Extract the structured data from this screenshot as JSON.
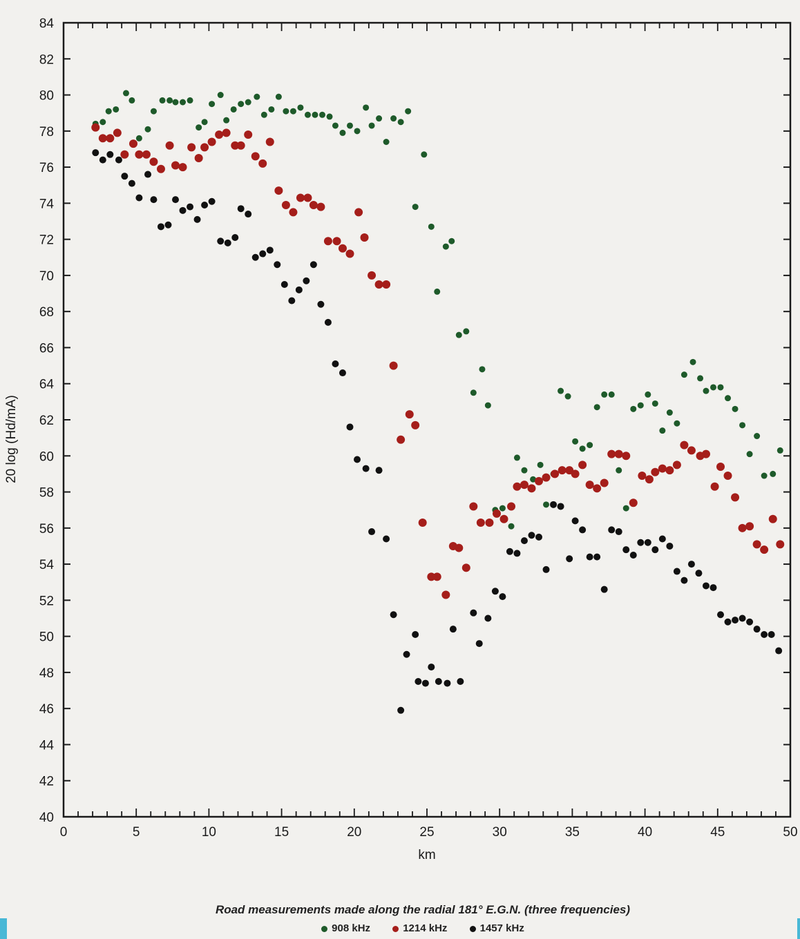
{
  "chart_data": {
    "type": "scatter",
    "title": "",
    "xlabel": "km",
    "ylabel": "20 log (Hd/mA)",
    "xlim": [
      0,
      50
    ],
    "ylim": [
      40,
      84
    ],
    "x_ticks": [
      0,
      5,
      10,
      15,
      20,
      25,
      30,
      35,
      40,
      45,
      50
    ],
    "y_ticks": [
      40,
      42,
      44,
      46,
      48,
      50,
      52,
      54,
      56,
      58,
      60,
      62,
      64,
      66,
      68,
      70,
      72,
      74,
      76,
      78,
      80,
      82,
      84
    ],
    "grid": false,
    "legend_position": "bottom",
    "series": [
      {
        "name": "908 kHz",
        "color": "#1e5a2a",
        "points": [
          [
            2.2,
            78.4
          ],
          [
            2.7,
            78.5
          ],
          [
            3.1,
            79.1
          ],
          [
            3.6,
            79.2
          ],
          [
            4.3,
            80.1
          ],
          [
            4.7,
            79.7
          ],
          [
            5.2,
            77.6
          ],
          [
            5.8,
            78.1
          ],
          [
            6.2,
            79.1
          ],
          [
            6.8,
            79.7
          ],
          [
            7.3,
            79.7
          ],
          [
            7.7,
            79.6
          ],
          [
            8.2,
            79.6
          ],
          [
            8.7,
            79.7
          ],
          [
            9.3,
            78.2
          ],
          [
            9.7,
            78.5
          ],
          [
            10.2,
            79.5
          ],
          [
            10.8,
            80.0
          ],
          [
            11.2,
            78.6
          ],
          [
            11.7,
            79.2
          ],
          [
            12.2,
            79.5
          ],
          [
            12.7,
            79.6
          ],
          [
            13.3,
            79.9
          ],
          [
            13.8,
            78.9
          ],
          [
            14.3,
            79.2
          ],
          [
            14.8,
            79.9
          ],
          [
            15.3,
            79.1
          ],
          [
            15.8,
            79.1
          ],
          [
            16.3,
            79.3
          ],
          [
            16.8,
            78.9
          ],
          [
            17.3,
            78.9
          ],
          [
            17.8,
            78.9
          ],
          [
            18.3,
            78.8
          ],
          [
            18.7,
            78.3
          ],
          [
            19.2,
            77.9
          ],
          [
            19.7,
            78.3
          ],
          [
            20.2,
            78.0
          ],
          [
            20.8,
            79.3
          ],
          [
            21.2,
            78.3
          ],
          [
            21.7,
            78.7
          ],
          [
            22.2,
            77.4
          ],
          [
            22.7,
            78.7
          ],
          [
            23.2,
            78.5
          ],
          [
            23.7,
            79.1
          ],
          [
            24.2,
            73.8
          ],
          [
            24.8,
            76.7
          ],
          [
            25.3,
            72.7
          ],
          [
            25.7,
            69.1
          ],
          [
            26.3,
            71.6
          ],
          [
            26.7,
            71.9
          ],
          [
            27.2,
            66.7
          ],
          [
            27.7,
            66.9
          ],
          [
            28.2,
            63.5
          ],
          [
            28.8,
            64.8
          ],
          [
            29.2,
            62.8
          ],
          [
            29.7,
            57.0
          ],
          [
            30.2,
            57.1
          ],
          [
            30.8,
            56.1
          ],
          [
            31.2,
            59.9
          ],
          [
            31.7,
            59.2
          ],
          [
            32.3,
            58.7
          ],
          [
            32.8,
            59.5
          ],
          [
            33.2,
            57.3
          ],
          [
            33.7,
            59.0
          ],
          [
            34.2,
            63.6
          ],
          [
            34.7,
            63.3
          ],
          [
            35.2,
            60.8
          ],
          [
            35.7,
            60.4
          ],
          [
            36.2,
            60.6
          ],
          [
            36.7,
            62.7
          ],
          [
            37.2,
            63.4
          ],
          [
            37.7,
            63.4
          ],
          [
            38.2,
            59.2
          ],
          [
            38.7,
            57.1
          ],
          [
            39.2,
            62.6
          ],
          [
            39.7,
            62.8
          ],
          [
            40.2,
            63.4
          ],
          [
            40.7,
            62.9
          ],
          [
            41.2,
            61.4
          ],
          [
            41.7,
            62.4
          ],
          [
            42.2,
            61.8
          ],
          [
            42.7,
            64.5
          ],
          [
            43.3,
            65.2
          ],
          [
            43.8,
            64.3
          ],
          [
            44.2,
            63.6
          ],
          [
            44.7,
            63.8
          ],
          [
            45.2,
            63.8
          ],
          [
            45.7,
            63.2
          ],
          [
            46.2,
            62.6
          ],
          [
            46.7,
            61.7
          ],
          [
            47.2,
            60.1
          ],
          [
            47.7,
            61.1
          ],
          [
            48.2,
            58.9
          ],
          [
            48.8,
            59.0
          ],
          [
            49.3,
            60.3
          ]
        ]
      },
      {
        "name": "1214 kHz",
        "color": "#a51e1a",
        "points": [
          [
            2.2,
            78.2
          ],
          [
            2.7,
            77.6
          ],
          [
            3.2,
            77.6
          ],
          [
            3.7,
            77.9
          ],
          [
            4.2,
            76.7
          ],
          [
            4.8,
            77.3
          ],
          [
            5.2,
            76.7
          ],
          [
            5.7,
            76.7
          ],
          [
            6.2,
            76.3
          ],
          [
            6.7,
            75.9
          ],
          [
            7.3,
            77.2
          ],
          [
            7.7,
            76.1
          ],
          [
            8.2,
            76.0
          ],
          [
            8.8,
            77.1
          ],
          [
            9.3,
            76.5
          ],
          [
            9.7,
            77.1
          ],
          [
            10.2,
            77.4
          ],
          [
            10.7,
            77.8
          ],
          [
            11.2,
            77.9
          ],
          [
            11.8,
            77.2
          ],
          [
            12.2,
            77.2
          ],
          [
            12.7,
            77.8
          ],
          [
            13.2,
            76.6
          ],
          [
            13.7,
            76.2
          ],
          [
            14.2,
            77.4
          ],
          [
            14.8,
            74.7
          ],
          [
            15.3,
            73.9
          ],
          [
            15.8,
            73.5
          ],
          [
            16.3,
            74.3
          ],
          [
            16.8,
            74.3
          ],
          [
            17.2,
            73.9
          ],
          [
            17.7,
            73.8
          ],
          [
            18.2,
            71.9
          ],
          [
            18.8,
            71.9
          ],
          [
            19.2,
            71.5
          ],
          [
            19.7,
            71.2
          ],
          [
            20.3,
            73.5
          ],
          [
            20.7,
            72.1
          ],
          [
            21.2,
            70.0
          ],
          [
            21.7,
            69.5
          ],
          [
            22.2,
            69.5
          ],
          [
            22.7,
            65.0
          ],
          [
            23.2,
            60.9
          ],
          [
            23.8,
            62.3
          ],
          [
            24.2,
            61.7
          ],
          [
            24.7,
            56.3
          ],
          [
            25.3,
            53.3
          ],
          [
            25.7,
            53.3
          ],
          [
            26.3,
            52.3
          ],
          [
            26.8,
            55.0
          ],
          [
            27.2,
            54.9
          ],
          [
            27.7,
            53.8
          ],
          [
            28.2,
            57.2
          ],
          [
            28.7,
            56.3
          ],
          [
            29.3,
            56.3
          ],
          [
            29.8,
            56.8
          ],
          [
            30.3,
            56.5
          ],
          [
            30.8,
            57.2
          ],
          [
            31.2,
            58.3
          ],
          [
            31.7,
            58.4
          ],
          [
            32.2,
            58.2
          ],
          [
            32.7,
            58.6
          ],
          [
            33.2,
            58.8
          ],
          [
            33.8,
            59.0
          ],
          [
            34.3,
            59.2
          ],
          [
            34.8,
            59.2
          ],
          [
            35.2,
            59.0
          ],
          [
            35.7,
            59.5
          ],
          [
            36.2,
            58.4
          ],
          [
            36.7,
            58.2
          ],
          [
            37.2,
            58.5
          ],
          [
            37.7,
            60.1
          ],
          [
            38.2,
            60.1
          ],
          [
            38.7,
            60.0
          ],
          [
            39.2,
            57.4
          ],
          [
            39.8,
            58.9
          ],
          [
            40.3,
            58.7
          ],
          [
            40.7,
            59.1
          ],
          [
            41.2,
            59.3
          ],
          [
            41.7,
            59.2
          ],
          [
            42.2,
            59.5
          ],
          [
            42.7,
            60.6
          ],
          [
            43.2,
            60.3
          ],
          [
            43.8,
            60.0
          ],
          [
            44.2,
            60.1
          ],
          [
            44.8,
            58.3
          ],
          [
            45.2,
            59.4
          ],
          [
            45.7,
            58.9
          ],
          [
            46.2,
            57.7
          ],
          [
            46.7,
            56.0
          ],
          [
            47.2,
            56.1
          ],
          [
            47.7,
            55.1
          ],
          [
            48.2,
            54.8
          ],
          [
            48.8,
            56.5
          ],
          [
            49.3,
            55.1
          ]
        ]
      },
      {
        "name": "1457 kHz",
        "color": "#111111",
        "points": [
          [
            2.2,
            76.8
          ],
          [
            2.7,
            76.4
          ],
          [
            3.2,
            76.7
          ],
          [
            3.8,
            76.4
          ],
          [
            4.2,
            75.5
          ],
          [
            4.7,
            75.1
          ],
          [
            5.2,
            74.3
          ],
          [
            5.8,
            75.6
          ],
          [
            6.2,
            74.2
          ],
          [
            6.7,
            72.7
          ],
          [
            7.2,
            72.8
          ],
          [
            7.7,
            74.2
          ],
          [
            8.2,
            73.6
          ],
          [
            8.7,
            73.8
          ],
          [
            9.2,
            73.1
          ],
          [
            9.7,
            73.9
          ],
          [
            10.2,
            74.1
          ],
          [
            10.8,
            71.9
          ],
          [
            11.3,
            71.8
          ],
          [
            11.8,
            72.1
          ],
          [
            12.2,
            73.7
          ],
          [
            12.7,
            73.4
          ],
          [
            13.2,
            71.0
          ],
          [
            13.7,
            71.2
          ],
          [
            14.2,
            71.4
          ],
          [
            14.7,
            70.6
          ],
          [
            15.2,
            69.5
          ],
          [
            15.7,
            68.6
          ],
          [
            16.2,
            69.2
          ],
          [
            16.7,
            69.7
          ],
          [
            17.2,
            70.6
          ],
          [
            17.7,
            68.4
          ],
          [
            18.2,
            67.4
          ],
          [
            18.7,
            65.1
          ],
          [
            19.2,
            64.6
          ],
          [
            19.7,
            61.6
          ],
          [
            20.2,
            59.8
          ],
          [
            20.8,
            59.3
          ],
          [
            21.2,
            55.8
          ],
          [
            21.7,
            59.2
          ],
          [
            22.2,
            55.4
          ],
          [
            22.7,
            51.2
          ],
          [
            23.2,
            45.9
          ],
          [
            23.6,
            49.0
          ],
          [
            24.2,
            50.1
          ],
          [
            24.4,
            47.5
          ],
          [
            24.9,
            47.4
          ],
          [
            25.3,
            48.3
          ],
          [
            25.8,
            47.5
          ],
          [
            26.4,
            47.4
          ],
          [
            26.8,
            50.4
          ],
          [
            27.3,
            47.5
          ],
          [
            28.2,
            51.3
          ],
          [
            28.6,
            49.6
          ],
          [
            29.2,
            51.0
          ],
          [
            29.7,
            52.5
          ],
          [
            30.2,
            52.2
          ],
          [
            30.7,
            54.7
          ],
          [
            31.2,
            54.6
          ],
          [
            31.7,
            55.3
          ],
          [
            32.2,
            55.6
          ],
          [
            32.7,
            55.5
          ],
          [
            33.2,
            53.7
          ],
          [
            33.7,
            57.3
          ],
          [
            34.2,
            57.2
          ],
          [
            34.8,
            54.3
          ],
          [
            35.2,
            56.4
          ],
          [
            35.7,
            55.9
          ],
          [
            36.2,
            54.4
          ],
          [
            36.7,
            54.4
          ],
          [
            37.2,
            52.6
          ],
          [
            37.7,
            55.9
          ],
          [
            38.2,
            55.8
          ],
          [
            38.7,
            54.8
          ],
          [
            39.2,
            54.5
          ],
          [
            39.7,
            55.2
          ],
          [
            40.2,
            55.2
          ],
          [
            40.7,
            54.8
          ],
          [
            41.2,
            55.4
          ],
          [
            41.7,
            55.0
          ],
          [
            42.2,
            53.6
          ],
          [
            42.7,
            53.1
          ],
          [
            43.2,
            54.0
          ],
          [
            43.7,
            53.5
          ],
          [
            44.2,
            52.8
          ],
          [
            44.7,
            52.7
          ],
          [
            45.2,
            51.2
          ],
          [
            45.7,
            50.8
          ],
          [
            46.2,
            50.9
          ],
          [
            46.7,
            51.0
          ],
          [
            47.2,
            50.8
          ],
          [
            47.7,
            50.4
          ],
          [
            48.2,
            50.1
          ],
          [
            48.7,
            50.1
          ],
          [
            49.2,
            49.2
          ]
        ]
      }
    ],
    "caption": "Road measurements made along the radial 181° E.G.N. (three frequencies)"
  }
}
